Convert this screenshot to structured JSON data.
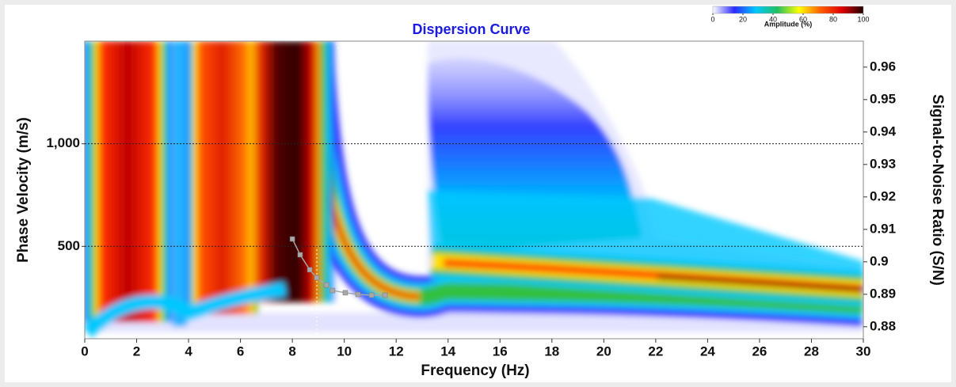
{
  "chart_data": {
    "type": "scatter",
    "title": "Dispersion Curve",
    "x_label": "Frequency (Hz)",
    "y_label": "Phase Velocity (m/s)",
    "y2_label": "Signal-to-Noise Ratio (S/N)",
    "xlim": [
      0,
      30
    ],
    "xticks": [
      0,
      2,
      4,
      6,
      8,
      10,
      12,
      14,
      16,
      18,
      20,
      22,
      24,
      26,
      28,
      30
    ],
    "ylim": [
      50,
      1500
    ],
    "yticks": [
      500,
      {
        "value": 1000,
        "label": "1,000"
      }
    ],
    "y2lim": [
      0.8763,
      0.968
    ],
    "y2ticks": [
      0.88,
      0.89,
      0.9,
      0.91,
      0.92,
      0.93,
      0.94,
      0.95,
      0.96
    ],
    "grid": true,
    "series": [
      {
        "color": "#a8a8a8",
        "x": [
          8.0,
          8.3,
          8.67,
          8.94,
          9.31,
          9.55,
          10.04,
          10.53,
          11.05,
          11.57
        ],
        "values": [
          536,
          459,
          386,
          347,
          312,
          285,
          274,
          266,
          262,
          262
        ]
      }
    ],
    "colorbar": {
      "label": "Amplitude (%)",
      "lim": [
        0,
        100
      ],
      "ticks": [
        0,
        20,
        40,
        60,
        80,
        100
      ],
      "colors": [
        "#ffffff",
        "#2a2aff",
        "#00c8ff",
        "#20c060",
        "#ffff00",
        "#ff6000",
        "#e00000",
        "#200000"
      ]
    }
  }
}
